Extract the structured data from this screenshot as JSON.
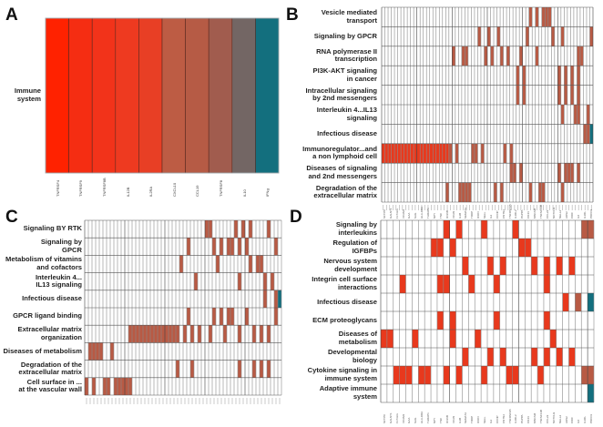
{
  "colors": {
    "cell_empty": "#ffffff",
    "grid_line": "#8a8a8a",
    "high_red": "#e8391d",
    "mid_brown": "#b85a44",
    "teal": "#136f7e",
    "gray": "#706665"
  },
  "chart_data": [
    {
      "panel": "A",
      "type": "heatmap",
      "rows": [
        "Immune\nsystem"
      ],
      "columns": [
        "TNFRSF4",
        "TNFRSF9",
        "TNFRSF8B",
        "IL12B",
        "IL2RA",
        "CXCL10",
        "CCL19",
        "TNFRSF8",
        "IL10",
        "IFNg"
      ],
      "cell_colors": [
        "#ff2200",
        "#f52d12",
        "#f2331a",
        "#ee3a20",
        "#e83f25",
        "#bd5c44",
        "#b65b45",
        "#a15c4e",
        "#736664",
        "#136f7e"
      ],
      "legend": null
    },
    {
      "panel": "B",
      "type": "heatmap",
      "n_columns": 66,
      "column_labels_legible": false,
      "rows": [
        {
          "label": "Vesicle mediated\ntransport",
          "cols": [
            46,
            48,
            50,
            51,
            52
          ],
          "teal": []
        },
        {
          "label": "Signaling by GPCR",
          "cols": [
            30,
            33,
            36,
            45,
            53,
            56,
            65
          ],
          "teal": []
        },
        {
          "label": "RNA polymerase II\ntranscription",
          "cols": [
            22,
            25,
            26,
            32,
            34,
            37,
            39,
            43,
            48,
            61,
            62
          ],
          "teal": []
        },
        {
          "label": "PI3K-AKT signaling\nin cancer",
          "cols": [
            42,
            44,
            55,
            57,
            59,
            61
          ],
          "teal": []
        },
        {
          "label": "Intracellular signaling\nby 2nd messengers",
          "cols": [
            42,
            44,
            55,
            57,
            59,
            61
          ],
          "teal": []
        },
        {
          "label": "Interleukin 4...IL13\nsignaling",
          "cols": [
            56,
            60,
            61,
            64
          ],
          "teal": []
        },
        {
          "label": "Infectious disease",
          "cols": [
            63,
            64
          ],
          "teal": [
            65
          ]
        },
        {
          "label": "Immunoregulator...and\na non lymphoid cell",
          "cols": [
            0,
            1,
            2,
            3,
            4,
            5,
            6,
            7,
            8,
            9,
            10,
            11,
            12,
            13,
            14,
            15,
            16,
            17,
            18,
            19,
            20,
            21,
            23,
            28,
            29,
            31,
            38,
            40
          ],
          "teal": []
        },
        {
          "label": "Diseases of signaling\nand 2nd messengers",
          "cols": [
            40,
            41,
            43,
            55,
            57,
            58,
            59,
            61
          ],
          "teal": []
        },
        {
          "label": "Degradation of the\nextracellular matrix",
          "cols": [
            20,
            24,
            25,
            26,
            27,
            35,
            37,
            46,
            49,
            50,
            56
          ],
          "teal": []
        }
      ]
    },
    {
      "panel": "C",
      "type": "heatmap",
      "n_columns": 54,
      "column_labels_legible": false,
      "rows": [
        {
          "label": "Signaling BY RTK",
          "cols": [
            33,
            34,
            41,
            43,
            45,
            50
          ],
          "teal": []
        },
        {
          "label": "Signaling by\nGPCR",
          "cols": [
            28,
            35,
            37,
            39,
            40,
            42,
            44,
            52
          ],
          "teal": []
        },
        {
          "label": "Metabolism of vitamins\nand cofactors",
          "cols": [
            26,
            36,
            45,
            47,
            48
          ],
          "teal": []
        },
        {
          "label": "Interleukin 4...\nIL13 signaling",
          "cols": [
            30,
            42,
            49,
            51
          ],
          "teal": []
        },
        {
          "label": "Infectious disease",
          "cols": [
            49,
            52
          ],
          "teal": [
            53
          ]
        },
        {
          "label": "GPCR ligand binding",
          "cols": [
            28,
            35,
            37,
            39,
            40,
            44,
            52
          ],
          "teal": []
        },
        {
          "label": "Extracellular matrix\norganization",
          "cols": [
            12,
            13,
            14,
            15,
            16,
            17,
            18,
            19,
            20,
            21,
            22,
            23,
            24,
            25,
            27,
            29,
            31,
            34,
            38,
            42,
            46,
            48,
            50
          ],
          "teal": []
        },
        {
          "label": "Diseases of metabolism",
          "cols": [
            1,
            2,
            3,
            4,
            7
          ],
          "teal": []
        },
        {
          "label": "Degradation of the\nextracellular matrix",
          "cols": [
            25,
            29,
            42,
            46,
            48,
            50
          ],
          "teal": []
        },
        {
          "label": "Cell surface in ...\nat the vascular wall",
          "cols": [
            0,
            2,
            5,
            6,
            8,
            9,
            10,
            11,
            12
          ],
          "teal": []
        }
      ]
    },
    {
      "panel": "D",
      "type": "heatmap",
      "n_columns": 34,
      "column_labels": [
        "SFTPD",
        "GALNT1",
        "FLT3LG",
        "VCAM1",
        "GAA",
        "SAG",
        "HLA-DRA",
        "THRAP1",
        "NPY",
        "TNC",
        "IFI16B",
        "VCAN",
        "IL1B",
        "SEMA7A",
        "TRDP",
        "ICON",
        "SELL",
        "IL2",
        "CCNP",
        "CNTN2",
        "TNFRSF1B",
        "IL1RL2",
        "PAPPA",
        "CD44",
        "MSCAM",
        "TNFSF13B",
        "CCL22",
        "NOTCH3",
        "NELL2",
        "ADS2",
        "CDIF",
        "IL6",
        "IL1RL",
        "PDCD1"
      ],
      "rows": [
        {
          "label": "Signaling by\ninterleukins",
          "cols": [
            10,
            12,
            16,
            21
          ],
          "brown": [
            32,
            33
          ],
          "teal": []
        },
        {
          "label": "Regulation of\nIGFBPs",
          "cols": [
            8,
            9,
            11,
            22,
            23
          ],
          "brown": [],
          "teal": []
        },
        {
          "label": "Nervous system\ndevelopment",
          "cols": [
            13,
            17,
            19,
            24,
            26,
            28,
            30
          ],
          "brown": [],
          "teal": []
        },
        {
          "label": "Integrin cell surface\ninteractions",
          "cols": [
            3,
            9,
            10,
            14,
            18,
            26
          ],
          "brown": [],
          "teal": []
        },
        {
          "label": "Infectious disease",
          "cols": [
            29
          ],
          "brown": [
            31
          ],
          "teal": [
            33
          ]
        },
        {
          "label": "ECM proteoglycans",
          "cols": [
            9,
            11,
            18,
            26
          ],
          "brown": [],
          "teal": []
        },
        {
          "label": "Diseases of\nmetabolism",
          "cols": [
            0,
            1,
            5,
            11,
            15,
            27
          ],
          "brown": [],
          "teal": []
        },
        {
          "label": "Developmental\nbiology",
          "cols": [
            13,
            17,
            19,
            24,
            26,
            28,
            30
          ],
          "brown": [],
          "teal": []
        },
        {
          "label": "Cytokine signaling in\nimmune system",
          "cols": [
            2,
            3,
            4,
            6,
            7,
            10,
            12,
            16,
            20,
            21,
            25
          ],
          "brown": [
            32,
            33
          ],
          "teal": []
        },
        {
          "label": "Adaptive immune\nsystem",
          "cols": [],
          "brown": [],
          "teal": [
            33
          ]
        }
      ]
    }
  ]
}
